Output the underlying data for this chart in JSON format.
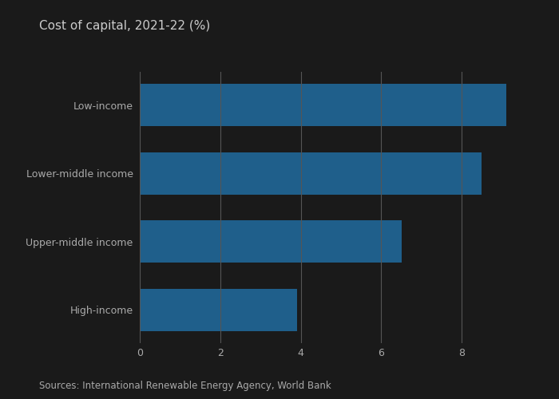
{
  "title": "Cost of capital, 2021-22 (%)",
  "categories": [
    "High-income",
    "Upper-middle income",
    "Lower-middle income",
    "Low-income"
  ],
  "values": [
    3.9,
    6.5,
    8.5,
    9.1
  ],
  "bar_color": "#1f5f8b",
  "xlim": [
    0,
    10
  ],
  "xticks": [
    0,
    2,
    4,
    6,
    8
  ],
  "source_text": "Sources: International Renewable Energy Agency, World Bank",
  "background_color": "#1a1a1a",
  "title_color": "#cccccc",
  "label_color": "#aaaaaa",
  "tick_color": "#aaaaaa",
  "source_color": "#aaaaaa",
  "grid_color": "#555555",
  "title_fontsize": 11,
  "label_fontsize": 9,
  "source_fontsize": 8.5,
  "tick_fontsize": 9,
  "bar_height": 0.62
}
